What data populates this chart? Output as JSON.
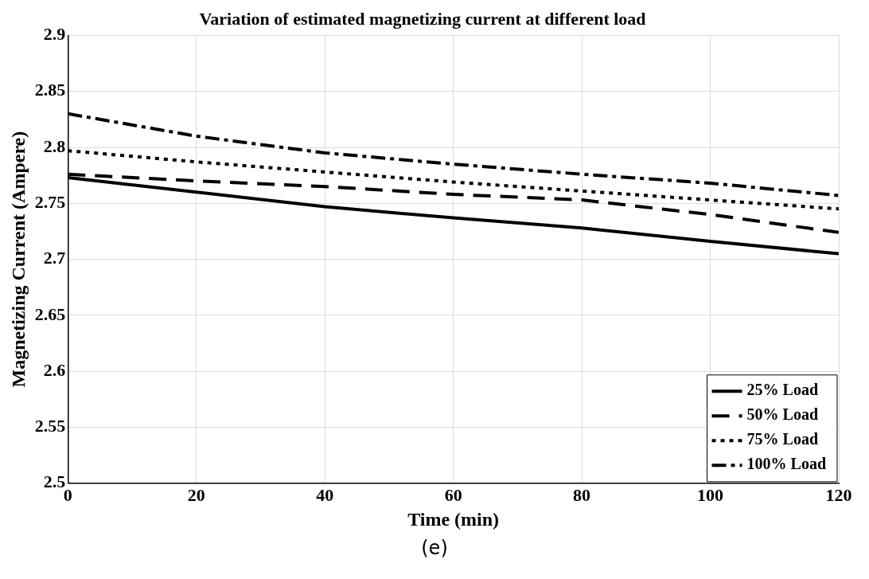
{
  "chart_data": {
    "type": "line",
    "title": "Variation of estimated magnetizing current at different load",
    "xlabel": "Time (min)",
    "ylabel": "Magnetizing Current (Ampere)",
    "x": [
      0,
      20,
      40,
      60,
      80,
      100,
      120
    ],
    "series": [
      {
        "name": "25% Load",
        "color": "#000000",
        "line_style": "solid",
        "values": [
          2.773,
          2.76,
          2.747,
          2.737,
          2.728,
          2.716,
          2.705
        ]
      },
      {
        "name": "50% Load",
        "color": "#000000",
        "line_style": "dashed",
        "values": [
          2.776,
          2.77,
          2.765,
          2.758,
          2.753,
          2.74,
          2.724
        ]
      },
      {
        "name": "75% Load",
        "color": "#000000",
        "line_style": "dotted",
        "values": [
          2.797,
          2.787,
          2.778,
          2.769,
          2.761,
          2.753,
          2.745
        ]
      },
      {
        "name": "100% Load",
        "color": "#000000",
        "line_style": "dashdot",
        "values": [
          2.83,
          2.81,
          2.795,
          2.785,
          2.776,
          2.768,
          2.757
        ]
      }
    ],
    "xlim": [
      0,
      120
    ],
    "xticks": [
      0,
      20,
      40,
      60,
      80,
      100,
      120
    ],
    "ylim": [
      2.5,
      2.9
    ],
    "yticks": [
      2.5,
      2.55,
      2.6,
      2.65,
      2.7,
      2.75,
      2.8,
      2.85,
      2.9
    ],
    "grid": true,
    "legend": "bottom right",
    "marker": "none",
    "annotations": [
      "(e)"
    ]
  }
}
